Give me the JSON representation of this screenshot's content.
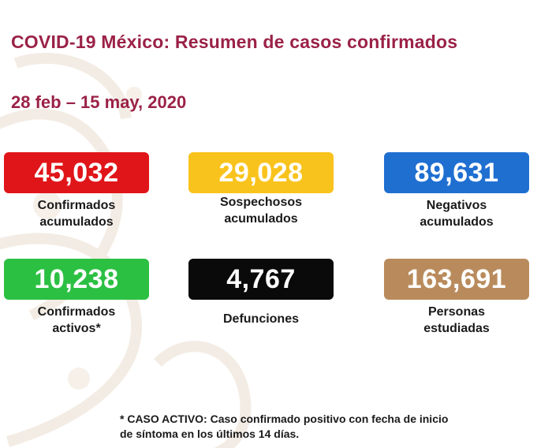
{
  "title": "COVID-19 México: Resumen de casos confirmados",
  "date_range": "28 feb – 15 may, 2020",
  "cards": [
    {
      "value": "45,032",
      "label_line1": "Confirmados",
      "label_line2": "acumulados",
      "color": "#e0151a"
    },
    {
      "value": "29,028",
      "label_line1": "Sospechosos",
      "label_line2": "acumulados",
      "color": "#f9c31d"
    },
    {
      "value": "89,631",
      "label_line1": "Negativos",
      "label_line2": "acumulados",
      "color": "#1f6fd1"
    },
    {
      "value": "10,238",
      "label_line1": "Confirmados",
      "label_line2": "activos*",
      "color": "#2cc043"
    },
    {
      "value": "4,767",
      "label_line1": "Defunciones",
      "label_line2": "",
      "color": "#0a0a0a"
    },
    {
      "value": "163,691",
      "label_line1": "Personas",
      "label_line2": "estudiadas",
      "color": "#b98b5c"
    }
  ],
  "footnote_line1": "* CASO ACTIVO: Caso confirmado positivo con fecha de inicio",
  "footnote_line2": "de síntoma en los últimos 14 días.",
  "colors": {
    "title": "#9b2247",
    "watermark": "#f3ece4"
  }
}
